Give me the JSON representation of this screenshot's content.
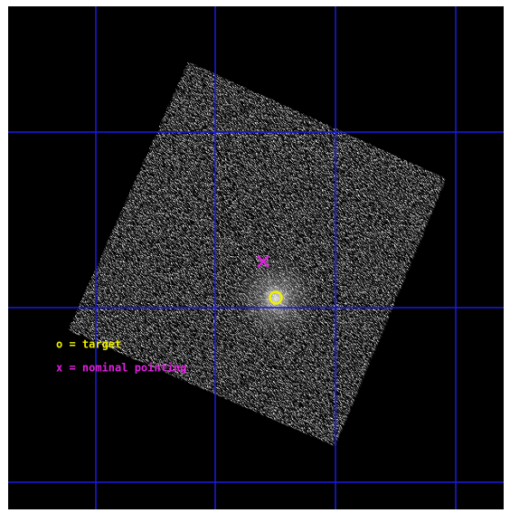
{
  "legend": {
    "target": "o = target",
    "pointing": "x = nominal pointing"
  }
}
